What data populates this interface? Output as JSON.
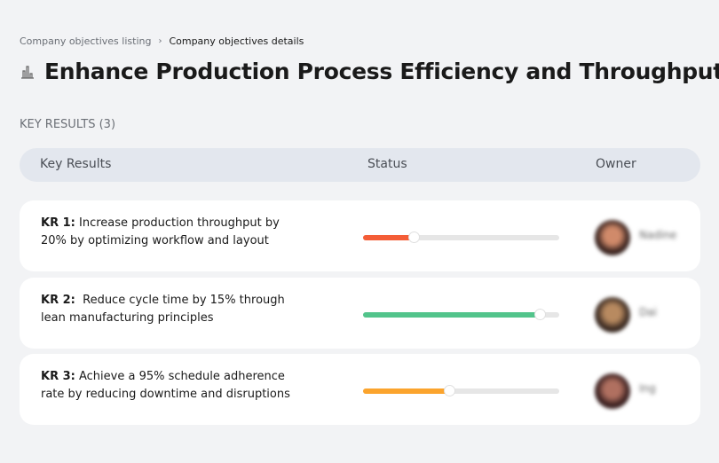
{
  "breadcrumb": {
    "items": [
      "Company objectives listing",
      "Company objectives details"
    ],
    "separator": "›"
  },
  "page_title": "Enhance Production Process Efficiency and Throughput",
  "title_icon": "building-chart-icon",
  "section_label": "KEY RESULTS (3)",
  "table": {
    "headers": [
      "Key Results",
      "Status",
      "Owner"
    ]
  },
  "key_results": [
    {
      "label": "KR 1:",
      "text": " Increase production throughput by 20% by optimizing workflow and layout",
      "progress_percent": 26,
      "color": "#f45d37",
      "owner": "Nadine"
    },
    {
      "label": "KR 2:",
      "text": "  Reduce cycle time by 15% through lean manufacturing principles",
      "progress_percent": 90,
      "color": "#52c48b",
      "owner": "Dai"
    },
    {
      "label": "KR 3:",
      "text": " Achieve a 95% schedule adherence rate by reducing downtime and disruptions",
      "progress_percent": 44,
      "color": "#fba42d",
      "owner": "Ing"
    }
  ]
}
